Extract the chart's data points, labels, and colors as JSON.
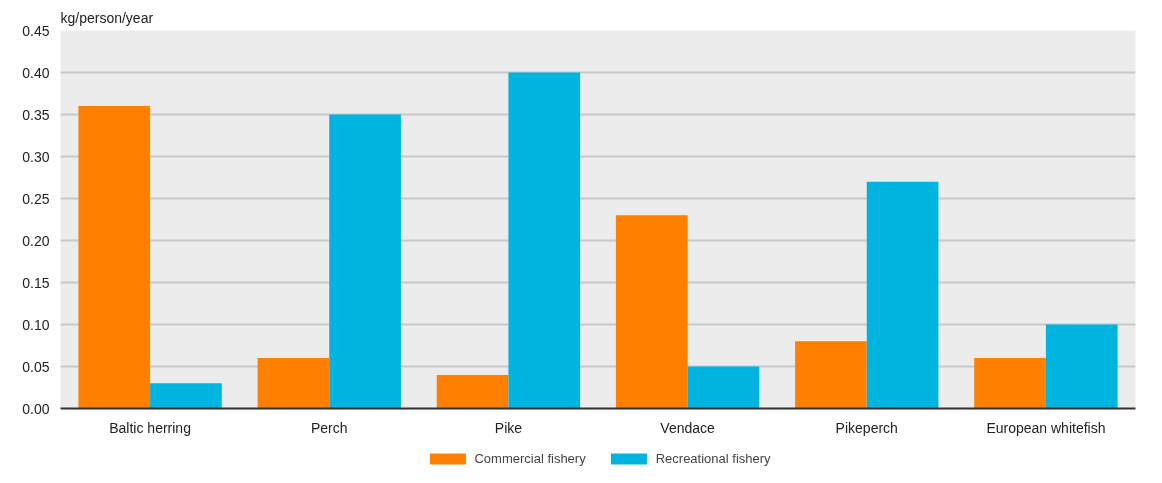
{
  "chart_data": {
    "type": "bar",
    "ylabel": "kg/person/year",
    "categories": [
      "Baltic herring",
      "Perch",
      "Pike",
      "Vendace",
      "Pikeperch",
      "European whitefish"
    ],
    "series": [
      {
        "name": "Commercial fishery",
        "color": "#ff8000",
        "values": [
          0.36,
          0.06,
          0.04,
          0.23,
          0.08,
          0.06
        ]
      },
      {
        "name": "Recreational fishery",
        "color": "#00b4e0",
        "values": [
          0.03,
          0.35,
          0.4,
          0.05,
          0.27,
          0.1
        ]
      }
    ],
    "ylim": [
      0,
      0.45
    ],
    "yticks": [
      {
        "value": 0,
        "label": "0.00"
      },
      0.05,
      {
        "value": 0.1,
        "label": "0.10"
      },
      0.15,
      {
        "value": 0.2,
        "label": "0.20"
      },
      0.25,
      {
        "value": 0.3,
        "label": "0.30"
      },
      0.35,
      {
        "value": 0.4,
        "label": "0.40"
      },
      0.45
    ],
    "grid": "y",
    "legend": "bottom"
  }
}
